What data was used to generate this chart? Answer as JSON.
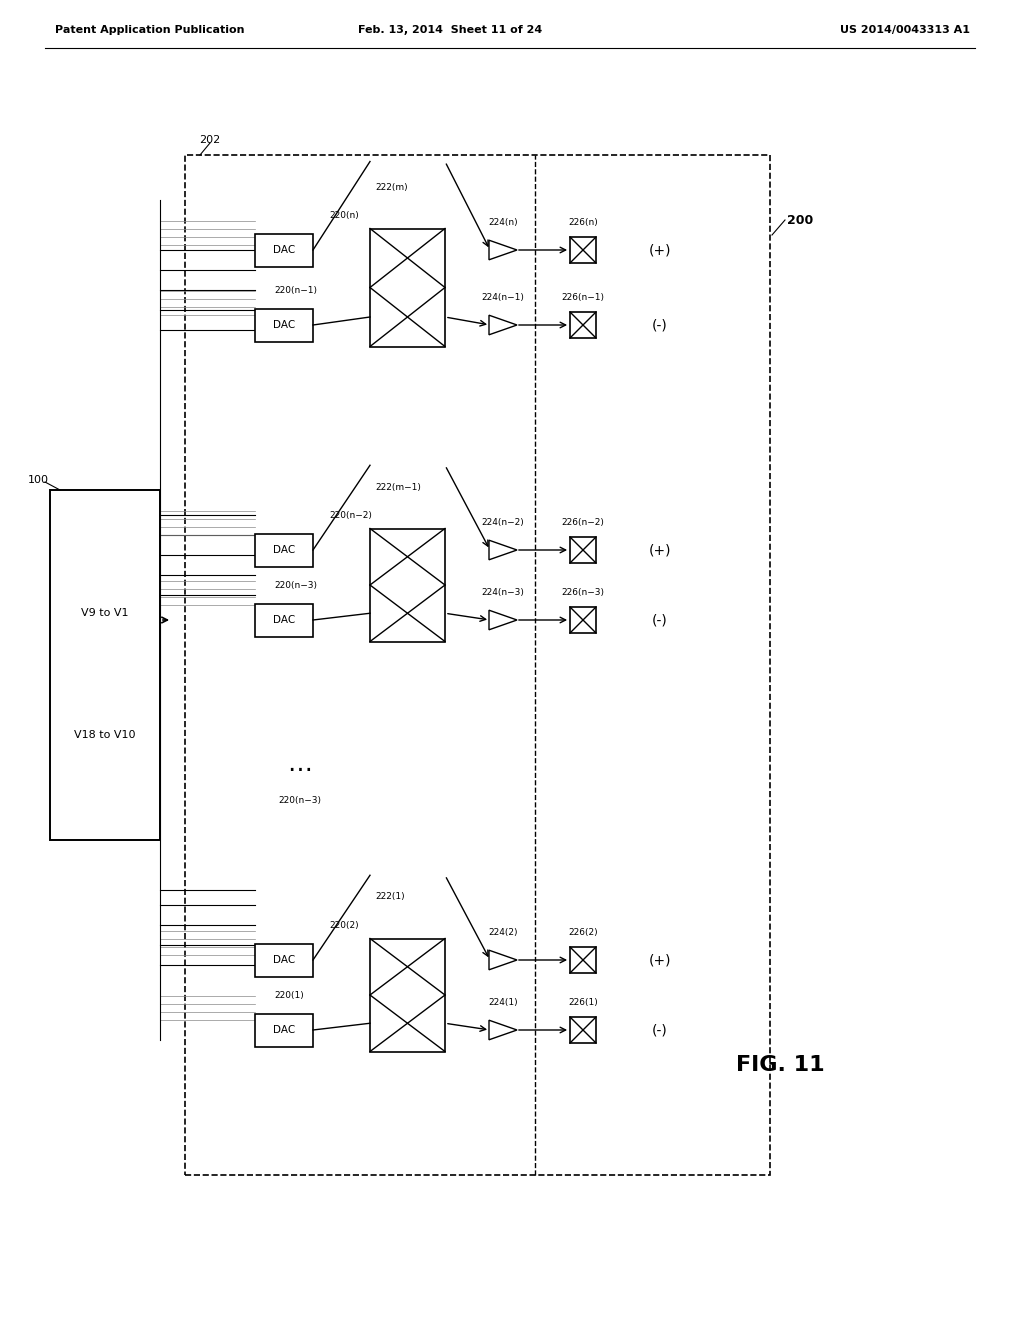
{
  "title": "FIG. 11",
  "header_left": "Patent Application Publication",
  "header_center": "Feb. 13, 2014  Sheet 11 of 24",
  "header_right": "US 2014/0043313 A1",
  "bg_color": "#ffffff",
  "fig_label": "FIG. 11",
  "block100_label": "100",
  "block100_top_text": "V9 to V1",
  "block100_bot_text": "V18 to V10",
  "label_202": "202",
  "label_200": "200"
}
